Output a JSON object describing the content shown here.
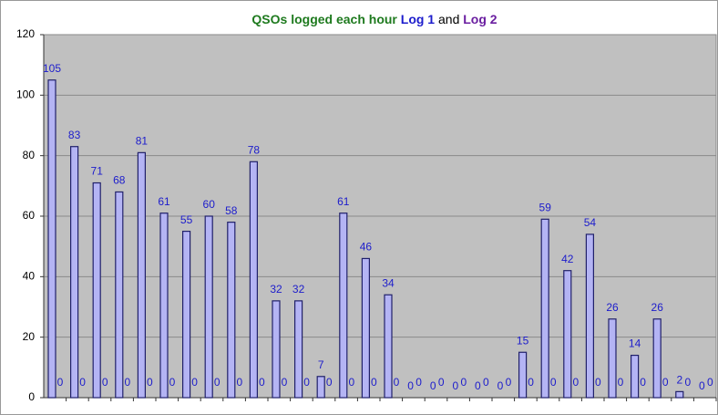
{
  "chart_data": {
    "type": "bar",
    "title": "QSOs logged each hour",
    "title_joiner": "and",
    "title_color": "#1e7a1e",
    "categories": [
      null,
      null,
      null,
      null,
      null,
      null,
      null,
      null,
      null,
      null,
      null,
      null,
      null,
      null,
      null,
      null,
      null,
      null,
      null,
      null,
      null,
      null,
      null,
      null,
      null,
      null,
      null,
      null,
      null,
      null
    ],
    "series": [
      {
        "name": "Log 1",
        "color": "#b4b4f4",
        "label_color": "#1c1ccc",
        "values": [
          105,
          83,
          71,
          68,
          81,
          61,
          55,
          60,
          58,
          78,
          32,
          32,
          7,
          61,
          46,
          34,
          0,
          0,
          0,
          0,
          0,
          15,
          59,
          42,
          54,
          26,
          14,
          26,
          2,
          0
        ]
      },
      {
        "name": "Log 2",
        "color": "#a060c8",
        "label_color": "#1c1ccc",
        "values": [
          0,
          0,
          0,
          0,
          0,
          0,
          0,
          0,
          0,
          0,
          0,
          0,
          0,
          0,
          0,
          0,
          0,
          0,
          0,
          0,
          0,
          0,
          0,
          0,
          0,
          0,
          0,
          0,
          0,
          0
        ]
      }
    ],
    "ylim": [
      0,
      120
    ],
    "yticks": [
      0,
      20,
      40,
      60,
      80,
      100,
      120
    ],
    "grid": true,
    "plot_color": "#c0c0c0"
  }
}
